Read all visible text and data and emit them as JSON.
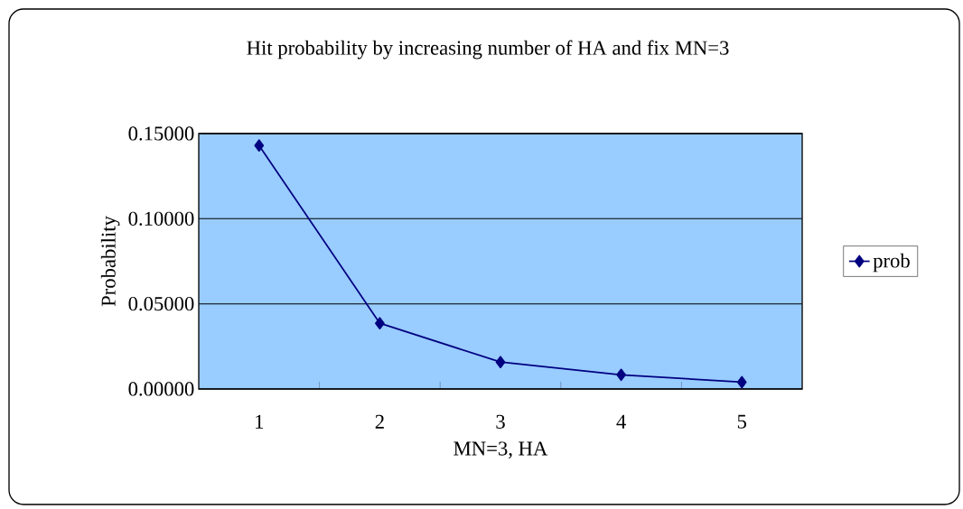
{
  "chart_data": {
    "type": "line",
    "title": "Hit probability by increasing number of HA and fix MN=3",
    "xlabel": "MN=3, HA",
    "ylabel": "Probability",
    "categories": [
      "1",
      "2",
      "3",
      "4",
      "5"
    ],
    "series": [
      {
        "name": "prob",
        "color": "#000080",
        "values": [
          0.143,
          0.0386,
          0.0158,
          0.0083,
          0.004
        ]
      }
    ],
    "ylim": [
      0,
      0.15
    ],
    "yticks": [
      {
        "value": 0,
        "label": "0.00000"
      },
      {
        "value": 0.05,
        "label": "0.05000"
      },
      {
        "value": 0.1,
        "label": "0.10000"
      },
      {
        "value": 0.15,
        "label": "0.15000"
      }
    ],
    "grid": "y",
    "legend": "right",
    "marker": "diamond",
    "line_style": "solid"
  }
}
